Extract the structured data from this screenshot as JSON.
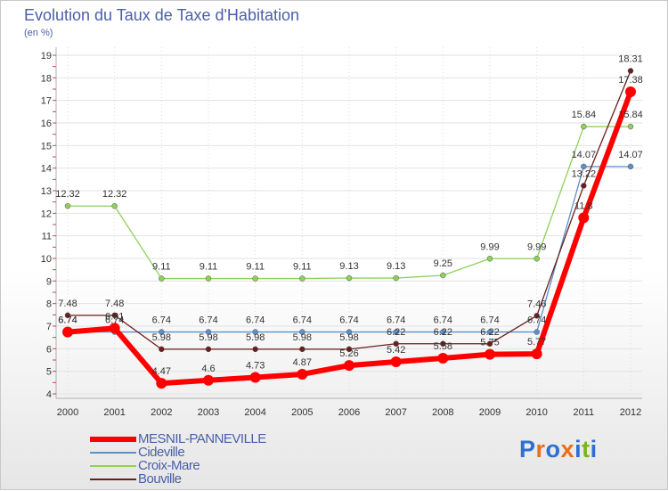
{
  "header": {
    "title": "Evolution du Taux de Taxe d'Habitation",
    "unit": "(en %)"
  },
  "brand": {
    "text": "Proxiti",
    "letters": [
      "P",
      "r",
      "o",
      "x",
      "i",
      "t",
      "i"
    ],
    "colors": [
      "#2f6fcf",
      "#e8701a",
      "#2f6fcf",
      "#e8701a",
      "#2f6fcf",
      "#7ab51d",
      "#2f6fcf"
    ]
  },
  "colors": {
    "mesnil": "#ff0000",
    "cideville": "#5e8fc8",
    "croix": "#8fd05a",
    "bouville": "#6b1e1e"
  },
  "chart_data": {
    "type": "line",
    "title": "Evolution du Taux de Taxe d'Habitation",
    "ylabel": "(en %)",
    "xlabel": "",
    "ylim": [
      4,
      19
    ],
    "yticks": [
      "4",
      "5",
      "6",
      "7",
      "8",
      "9",
      "10",
      "11",
      "12",
      "13",
      "14",
      "15",
      "16",
      "17",
      "18",
      "19"
    ],
    "x": [
      "2000",
      "2001",
      "2002",
      "2003",
      "2004",
      "2005",
      "2006",
      "2007",
      "2008",
      "2009",
      "2010",
      "2011",
      "2012"
    ],
    "series": [
      {
        "name": "Croix-Mare",
        "color": "#8fd05a",
        "width": 1.3,
        "values": [
          12.32,
          12.32,
          9.11,
          9.11,
          9.11,
          9.11,
          9.13,
          9.13,
          9.25,
          9.99,
          9.99,
          15.84,
          15.84
        ],
        "labels": [
          "12.32",
          "12.32",
          "9.11",
          "9.11",
          "9.11",
          "9.11",
          "9.13",
          "9.13",
          "9.25",
          "9.99",
          "9.99",
          "15.84",
          "15.84"
        ]
      },
      {
        "name": "Cideville",
        "color": "#5e8fc8",
        "width": 1.3,
        "values": [
          6.74,
          6.74,
          6.74,
          6.74,
          6.74,
          6.74,
          6.74,
          6.74,
          6.74,
          6.74,
          6.74,
          14.07,
          14.07
        ],
        "labels": [
          "6.74",
          "6.74",
          "6.74",
          "6.74",
          "6.74",
          "6.74",
          "6.74",
          "6.74",
          "6.74",
          "6.74",
          "6.74",
          "14.07",
          "14.07"
        ]
      },
      {
        "name": "Bouville",
        "color": "#6b1e1e",
        "width": 1.3,
        "values": [
          7.48,
          7.48,
          5.98,
          5.98,
          5.98,
          5.98,
          5.98,
          6.22,
          6.22,
          6.22,
          7.46,
          13.22,
          18.31
        ],
        "labels": [
          "7.48",
          "7.48",
          "5.98",
          "5.98",
          "5.98",
          "5.98",
          "5.98",
          "6.22",
          "6.22",
          "6.22",
          "7.46",
          "13.22",
          "18.31"
        ]
      },
      {
        "name": "MESNIL-PANNEVILLE",
        "color": "#ff0000",
        "width": 6,
        "values": [
          6.74,
          6.91,
          4.47,
          4.6,
          4.73,
          4.87,
          5.26,
          5.42,
          5.58,
          5.75,
          5.77,
          11.8,
          17.38
        ],
        "labels": [
          "6.74",
          "6.91",
          "4.47",
          "4.6",
          "4.73",
          "4.87",
          "5.26",
          "5.42",
          "5.58",
          "5.75",
          "5.77",
          "11.8",
          "17.38"
        ]
      }
    ],
    "legend": [
      "MESNIL-PANNEVILLE",
      "Cideville",
      "Croix-Mare",
      "Bouville"
    ]
  }
}
